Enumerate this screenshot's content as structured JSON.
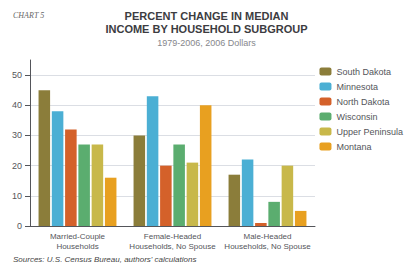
{
  "chart_data": {
    "type": "bar",
    "title": "PERCENT CHANGE IN MEDIAN\nINCOME BY HOUSEHOLD SUBGROUP",
    "subtitle": "1979-2006, 2006 Dollars",
    "annotations": [
      "CHART 5",
      "Sources: U.S. Census Bureau, authors' calculations"
    ],
    "categories": [
      "Married-Couple\nHouseholds",
      "Female-Headed\nHouseholds, No Spouse",
      "Male-Headed\nHouseholds, No Spouse"
    ],
    "series": [
      {
        "name": "South Dakota",
        "color": "#8B7D3A",
        "values": [
          45,
          30,
          17
        ]
      },
      {
        "name": "Minnesota",
        "color": "#4BAFD4",
        "values": [
          38,
          43,
          22
        ]
      },
      {
        "name": "North Dakota",
        "color": "#D4612A",
        "values": [
          32,
          20,
          1
        ]
      },
      {
        "name": "Wisconsin",
        "color": "#5BAD6F",
        "values": [
          27,
          27,
          8
        ]
      },
      {
        "name": "Upper Peninsula",
        "color": "#C8B84A",
        "values": [
          27,
          21,
          20
        ]
      },
      {
        "name": "Montana",
        "color": "#E8A020",
        "values": [
          16,
          40,
          5
        ]
      }
    ],
    "ylim": [
      0,
      55
    ],
    "yticks": [
      0,
      10,
      20,
      30,
      40,
      50
    ],
    "grid": true,
    "legend": "right"
  }
}
